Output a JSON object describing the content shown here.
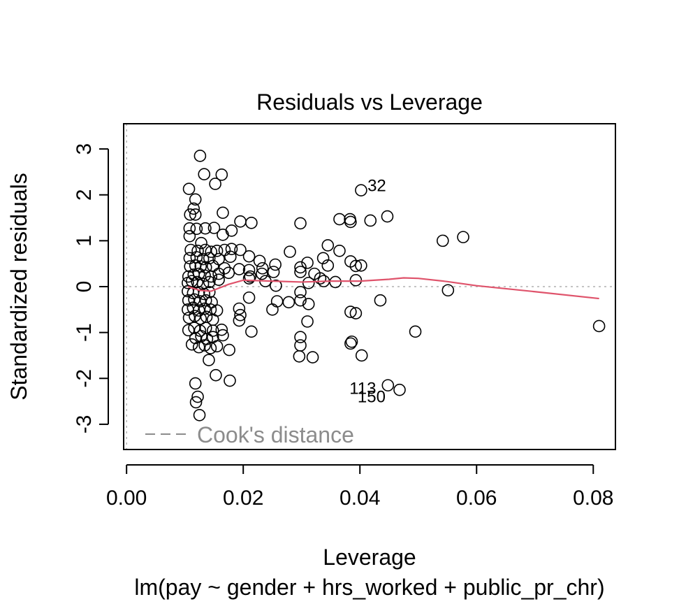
{
  "chart_data": {
    "type": "scatter",
    "title": "Residuals vs Leverage",
    "xlabel": "Leverage",
    "ylabel": "Standardized residuals",
    "subtitle": "lm(pay ~ gender + hrs_worked + public_pr_chr)",
    "xlim": [
      -0.0005,
      0.0838
    ],
    "ylim": [
      -3.55,
      3.55
    ],
    "xticks": [
      0.0,
      0.02,
      0.04,
      0.06,
      0.08
    ],
    "xtick_labels": [
      "0.00",
      "0.02",
      "0.04",
      "0.06",
      "0.08"
    ],
    "yticks": [
      -3,
      -2,
      -1,
      0,
      1,
      2,
      3
    ],
    "ytick_labels": [
      "-3",
      "-2",
      "-1",
      "0",
      "1",
      "2",
      "3"
    ],
    "legend": {
      "label": "Cook's distance",
      "position": "bottom-left"
    },
    "reference_lines": {
      "h": 0,
      "v": 0
    },
    "points": [
      {
        "x": 0.0126,
        "y": 2.85
      },
      {
        "x": 0.0133,
        "y": 2.45
      },
      {
        "x": 0.0163,
        "y": 2.44
      },
      {
        "x": 0.0152,
        "y": 2.24
      },
      {
        "x": 0.0107,
        "y": 2.13
      },
      {
        "x": 0.0118,
        "y": 1.9
      },
      {
        "x": 0.0115,
        "y": 1.7
      },
      {
        "x": 0.0109,
        "y": 1.57
      },
      {
        "x": 0.0118,
        "y": 1.57
      },
      {
        "x": 0.0165,
        "y": 1.61
      },
      {
        "x": 0.0195,
        "y": 1.42
      },
      {
        "x": 0.0214,
        "y": 1.39
      },
      {
        "x": 0.0108,
        "y": 1.27
      },
      {
        "x": 0.012,
        "y": 1.26
      },
      {
        "x": 0.0135,
        "y": 1.27
      },
      {
        "x": 0.015,
        "y": 1.28
      },
      {
        "x": 0.018,
        "y": 1.22
      },
      {
        "x": 0.0108,
        "y": 1.1
      },
      {
        "x": 0.0128,
        "y": 0.95
      },
      {
        "x": 0.0165,
        "y": 1.13
      },
      {
        "x": 0.0298,
        "y": 1.38
      },
      {
        "x": 0.0365,
        "y": 1.47
      },
      {
        "x": 0.0383,
        "y": 1.47
      },
      {
        "x": 0.0384,
        "y": 1.41
      },
      {
        "x": 0.0418,
        "y": 1.44
      },
      {
        "x": 0.0447,
        "y": 1.53
      },
      {
        "x": 0.0542,
        "y": 1.0
      },
      {
        "x": 0.0577,
        "y": 1.08
      },
      {
        "x": 0.0402,
        "y": 2.1
      },
      {
        "x": 0.011,
        "y": 0.8
      },
      {
        "x": 0.0122,
        "y": 0.78
      },
      {
        "x": 0.0135,
        "y": 0.8
      },
      {
        "x": 0.0145,
        "y": 0.76
      },
      {
        "x": 0.0155,
        "y": 0.78
      },
      {
        "x": 0.0168,
        "y": 0.8
      },
      {
        "x": 0.018,
        "y": 0.82
      },
      {
        "x": 0.0195,
        "y": 0.8
      },
      {
        "x": 0.021,
        "y": 0.66
      },
      {
        "x": 0.0228,
        "y": 0.56
      },
      {
        "x": 0.028,
        "y": 0.76
      },
      {
        "x": 0.0345,
        "y": 0.9
      },
      {
        "x": 0.0365,
        "y": 0.78
      },
      {
        "x": 0.0108,
        "y": 0.62
      },
      {
        "x": 0.012,
        "y": 0.64
      },
      {
        "x": 0.0131,
        "y": 0.6
      },
      {
        "x": 0.0142,
        "y": 0.62
      },
      {
        "x": 0.0158,
        "y": 0.6
      },
      {
        "x": 0.0178,
        "y": 0.65
      },
      {
        "x": 0.0109,
        "y": 0.44
      },
      {
        "x": 0.0118,
        "y": 0.46
      },
      {
        "x": 0.0127,
        "y": 0.44
      },
      {
        "x": 0.0136,
        "y": 0.42
      },
      {
        "x": 0.0148,
        "y": 0.45
      },
      {
        "x": 0.0168,
        "y": 0.4
      },
      {
        "x": 0.0193,
        "y": 0.38
      },
      {
        "x": 0.021,
        "y": 0.36
      },
      {
        "x": 0.0233,
        "y": 0.4
      },
      {
        "x": 0.0255,
        "y": 0.48
      },
      {
        "x": 0.0298,
        "y": 0.42
      },
      {
        "x": 0.031,
        "y": 0.52
      },
      {
        "x": 0.0337,
        "y": 0.62
      },
      {
        "x": 0.0345,
        "y": 0.46
      },
      {
        "x": 0.0384,
        "y": 0.55
      },
      {
        "x": 0.0393,
        "y": 0.45
      },
      {
        "x": 0.0402,
        "y": 0.46
      },
      {
        "x": 0.0106,
        "y": 0.22
      },
      {
        "x": 0.0115,
        "y": 0.26
      },
      {
        "x": 0.0124,
        "y": 0.28
      },
      {
        "x": 0.0134,
        "y": 0.24
      },
      {
        "x": 0.0145,
        "y": 0.22
      },
      {
        "x": 0.0158,
        "y": 0.28
      },
      {
        "x": 0.0175,
        "y": 0.3
      },
      {
        "x": 0.0212,
        "y": 0.22
      },
      {
        "x": 0.0232,
        "y": 0.28
      },
      {
        "x": 0.0252,
        "y": 0.32
      },
      {
        "x": 0.0298,
        "y": 0.32
      },
      {
        "x": 0.0322,
        "y": 0.28
      },
      {
        "x": 0.0332,
        "y": 0.18
      },
      {
        "x": 0.0105,
        "y": 0.08
      },
      {
        "x": 0.0112,
        "y": 0.12
      },
      {
        "x": 0.0121,
        "y": 0.1
      },
      {
        "x": 0.0131,
        "y": 0.06
      },
      {
        "x": 0.0142,
        "y": 0.1
      },
      {
        "x": 0.0158,
        "y": 0.15
      },
      {
        "x": 0.021,
        "y": 0.18
      },
      {
        "x": 0.0238,
        "y": 0.12
      },
      {
        "x": 0.0256,
        "y": 0.02
      },
      {
        "x": 0.0312,
        "y": 0.08
      },
      {
        "x": 0.0338,
        "y": 0.12
      },
      {
        "x": 0.0358,
        "y": 0.1
      },
      {
        "x": 0.0393,
        "y": 0.14
      },
      {
        "x": 0.0551,
        "y": -0.08
      },
      {
        "x": 0.0105,
        "y": -0.1
      },
      {
        "x": 0.0114,
        "y": -0.14
      },
      {
        "x": 0.0124,
        "y": -0.12
      },
      {
        "x": 0.0133,
        "y": -0.16
      },
      {
        "x": 0.0142,
        "y": -0.12
      },
      {
        "x": 0.0298,
        "y": -0.12
      },
      {
        "x": 0.0106,
        "y": -0.3
      },
      {
        "x": 0.0116,
        "y": -0.28
      },
      {
        "x": 0.0126,
        "y": -0.32
      },
      {
        "x": 0.0136,
        "y": -0.3
      },
      {
        "x": 0.0146,
        "y": -0.34
      },
      {
        "x": 0.021,
        "y": -0.24
      },
      {
        "x": 0.0258,
        "y": -0.32
      },
      {
        "x": 0.0278,
        "y": -0.34
      },
      {
        "x": 0.0298,
        "y": -0.3
      },
      {
        "x": 0.0312,
        "y": -0.38
      },
      {
        "x": 0.0435,
        "y": -0.3
      },
      {
        "x": 0.0105,
        "y": -0.5
      },
      {
        "x": 0.0114,
        "y": -0.46
      },
      {
        "x": 0.0124,
        "y": -0.52
      },
      {
        "x": 0.0134,
        "y": -0.48
      },
      {
        "x": 0.0144,
        "y": -0.5
      },
      {
        "x": 0.0155,
        "y": -0.52
      },
      {
        "x": 0.0193,
        "y": -0.48
      },
      {
        "x": 0.025,
        "y": -0.5
      },
      {
        "x": 0.0384,
        "y": -0.55
      },
      {
        "x": 0.0393,
        "y": -0.58
      },
      {
        "x": 0.0107,
        "y": -0.68
      },
      {
        "x": 0.0117,
        "y": -0.64
      },
      {
        "x": 0.0127,
        "y": -0.7
      },
      {
        "x": 0.0137,
        "y": -0.66
      },
      {
        "x": 0.0148,
        "y": -0.72
      },
      {
        "x": 0.0195,
        "y": -0.62
      },
      {
        "x": 0.0193,
        "y": -0.74
      },
      {
        "x": 0.031,
        "y": -0.76
      },
      {
        "x": 0.0106,
        "y": -0.95
      },
      {
        "x": 0.0116,
        "y": -0.9
      },
      {
        "x": 0.0126,
        "y": -0.96
      },
      {
        "x": 0.0136,
        "y": -0.9
      },
      {
        "x": 0.0148,
        "y": -0.96
      },
      {
        "x": 0.0163,
        "y": -0.94
      },
      {
        "x": 0.0214,
        "y": -0.98
      },
      {
        "x": 0.0495,
        "y": -0.98
      },
      {
        "x": 0.081,
        "y": -0.86
      },
      {
        "x": 0.0118,
        "y": -1.12
      },
      {
        "x": 0.0128,
        "y": -1.08
      },
      {
        "x": 0.0138,
        "y": -1.14
      },
      {
        "x": 0.0148,
        "y": -1.1
      },
      {
        "x": 0.0165,
        "y": -1.06
      },
      {
        "x": 0.0298,
        "y": -1.1
      },
      {
        "x": 0.0386,
        "y": -1.2
      },
      {
        "x": 0.0112,
        "y": -1.26
      },
      {
        "x": 0.0124,
        "y": -1.32
      },
      {
        "x": 0.0134,
        "y": -1.28
      },
      {
        "x": 0.0144,
        "y": -1.34
      },
      {
        "x": 0.0155,
        "y": -1.3
      },
      {
        "x": 0.0176,
        "y": -1.38
      },
      {
        "x": 0.0298,
        "y": -1.28
      },
      {
        "x": 0.0384,
        "y": -1.24
      },
      {
        "x": 0.0296,
        "y": -1.52
      },
      {
        "x": 0.0319,
        "y": -1.54
      },
      {
        "x": 0.0403,
        "y": -1.5
      },
      {
        "x": 0.0141,
        "y": -1.6
      },
      {
        "x": 0.0153,
        "y": -1.93
      },
      {
        "x": 0.0177,
        "y": -2.05
      },
      {
        "x": 0.0118,
        "y": -2.11
      },
      {
        "x": 0.0122,
        "y": -2.4
      },
      {
        "x": 0.0119,
        "y": -2.52
      },
      {
        "x": 0.0125,
        "y": -2.8
      },
      {
        "x": 0.0448,
        "y": -2.15
      },
      {
        "x": 0.0468,
        "y": -2.25
      }
    ],
    "point_labels": [
      {
        "text": "32",
        "x": 0.0402,
        "y": 2.1,
        "dx": 0.0011,
        "dy": 0.1
      },
      {
        "text": "113",
        "x": 0.0448,
        "y": -2.15,
        "dx": -0.0066,
        "dy": -0.07
      },
      {
        "text": "150",
        "x": 0.0448,
        "y": -2.15,
        "dx": -0.0052,
        "dy": -0.25
      }
    ],
    "smooth_line": {
      "color": "#df536b",
      "x": [
        0.0105,
        0.0125,
        0.0145,
        0.0175,
        0.02,
        0.025,
        0.03,
        0.035,
        0.04,
        0.045,
        0.0475,
        0.05,
        0.055,
        0.06,
        0.07,
        0.081
      ],
      "y": [
        0.0,
        -0.08,
        -0.1,
        0.05,
        0.14,
        0.12,
        0.1,
        0.12,
        0.12,
        0.16,
        0.19,
        0.18,
        0.11,
        0.02,
        -0.11,
        -0.26
      ]
    }
  }
}
